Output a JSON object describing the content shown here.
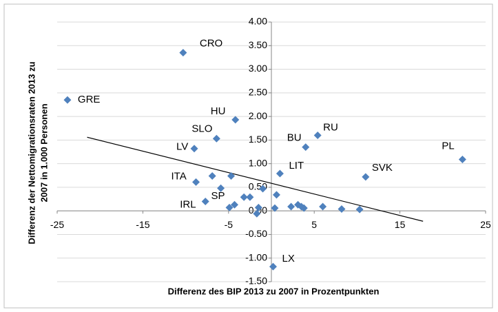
{
  "chart_data": {
    "type": "scatter",
    "xlabel": "Differenz des BIP 2013 zu 2007 in Prozentpunkten",
    "ylabel": [
      "Differenz der Nettomigrationsraten 2013 zu",
      "2007 in 1.000 Personen"
    ],
    "series": [
      {
        "color": "#4f81bd",
        "labels": [
          "GRE",
          "CRO",
          "HU",
          "SLO",
          "LV",
          "BU",
          "RU",
          "PL",
          "SVK",
          "LIT",
          "ITA",
          "IRL",
          "SP",
          "LX",
          null,
          null,
          null,
          null,
          null,
          null,
          null,
          null,
          null,
          null,
          null,
          null,
          null,
          null,
          null,
          null,
          null,
          null
        ],
        "x": [
          -23.8,
          -10.3,
          -4.2,
          -6.4,
          -9.0,
          4.0,
          5.4,
          22.3,
          11.0,
          1.0,
          -8.8,
          -7.7,
          -4.3,
          0.2,
          -6.9,
          -4.7,
          -5.9,
          -1.0,
          -3.2,
          -2.5,
          0.6,
          -4.9,
          -1.5,
          -1.7,
          0.4,
          2.3,
          3.1,
          3.5,
          3.8,
          6.0,
          8.2,
          10.3
        ],
        "values": [
          2.35,
          3.35,
          1.93,
          1.53,
          1.32,
          1.35,
          1.6,
          1.09,
          0.72,
          0.79,
          0.61,
          0.2,
          0.13,
          -1.18,
          0.74,
          0.74,
          0.48,
          0.47,
          0.29,
          0.29,
          0.34,
          0.07,
          0.07,
          -0.06,
          0.06,
          0.09,
          0.13,
          0.09,
          0.06,
          0.09,
          0.04,
          0.03
        ]
      }
    ],
    "trendline": {
      "x": [
        -21.5,
        17.7
      ],
      "values": [
        1.56,
        -0.22
      ],
      "color": "#000000"
    },
    "xlim": [
      -25,
      25
    ],
    "xticks": [
      -25,
      -15,
      -5,
      5,
      15,
      25
    ],
    "ylim": [
      -1.5,
      4
    ],
    "yticks": [
      {
        "value": -1.5,
        "label": "-1.50"
      },
      {
        "value": -1,
        "label": "-1.00"
      },
      {
        "value": -0.5,
        "label": "-0.50"
      },
      {
        "value": 0,
        "label": "0.00"
      },
      {
        "value": 0.5,
        "label": "0.50"
      },
      {
        "value": 1,
        "label": "1.00"
      },
      {
        "value": 1.5,
        "label": "1.50"
      },
      {
        "value": 2,
        "label": "2.00"
      },
      {
        "value": 2.5,
        "label": "2.50"
      },
      {
        "value": 3,
        "label": "3.00"
      },
      {
        "value": 3.5,
        "label": "3.50"
      },
      {
        "value": 4,
        "label": "4.00"
      }
    ],
    "grid": true
  }
}
